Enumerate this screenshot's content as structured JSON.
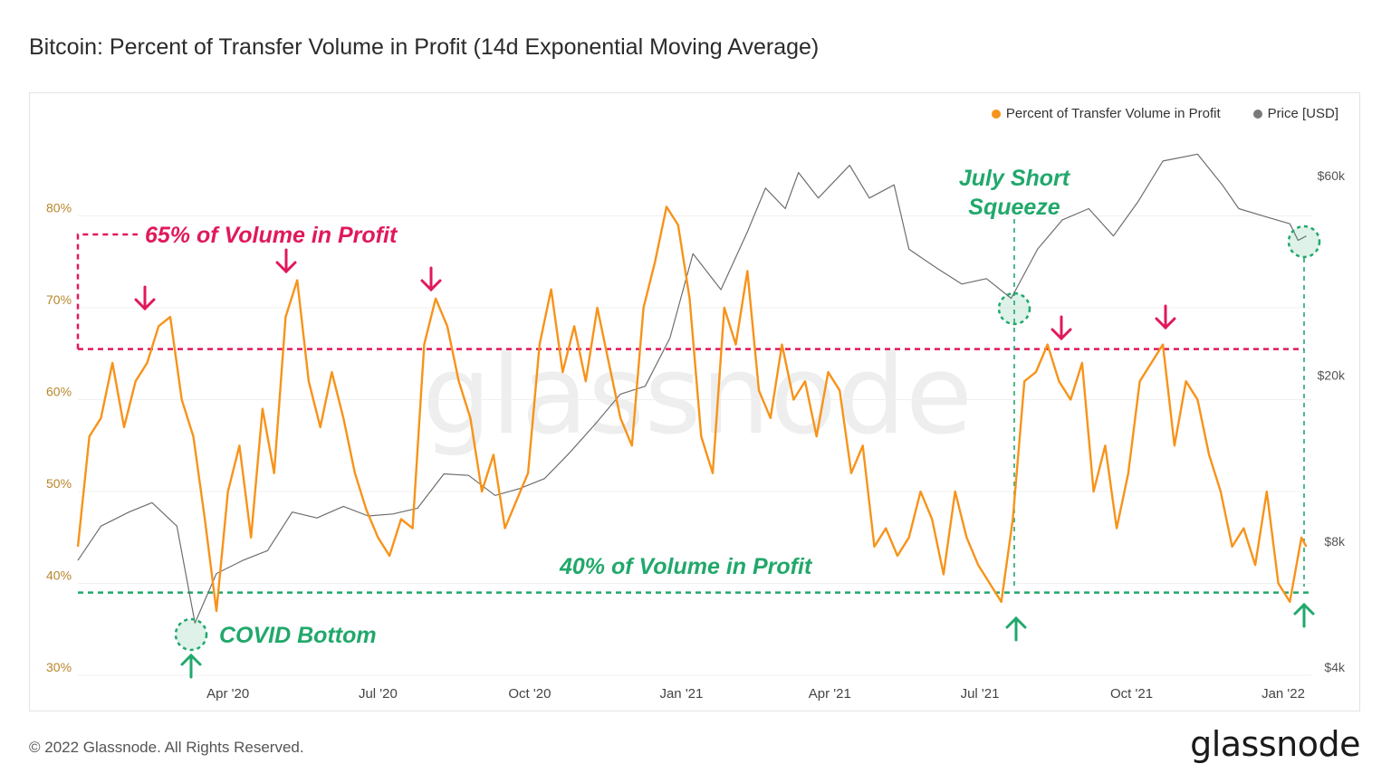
{
  "title": "Bitcoin: Percent of Transfer Volume in Profit (14d Exponential Moving Average)",
  "footer": {
    "copyright": "© 2022 Glassnode. All Rights Reserved.",
    "brand": "glassnode"
  },
  "watermark": "glassnode",
  "legend": [
    {
      "label": "Percent of Transfer Volume in Profit",
      "color": "#f7931a"
    },
    {
      "label": "Price [USD]",
      "color": "#6e6e6e"
    }
  ],
  "chart_data": {
    "type": "line",
    "x_ticks": [
      "Apr '20",
      "Jul '20",
      "Oct '20",
      "Jan '21",
      "Apr '21",
      "Jul '21",
      "Oct '21",
      "Jan '22"
    ],
    "y_left_ticks": [
      "30%",
      "40%",
      "50%",
      "60%",
      "70%",
      "80%"
    ],
    "y_left_range": [
      30,
      80
    ],
    "y_right_ticks": [
      "$4k",
      "$8k",
      "$20k",
      "$60k"
    ],
    "y_right_scale": "log",
    "annotations": {
      "top_line_label": "65% of Volume in Profit",
      "bottom_line_label": "40% of Volume in Profit",
      "covid": "COVID Bottom",
      "july_1": "July Short",
      "july_2": "Squeeze"
    },
    "series": [
      {
        "name": "Percent of Transfer Volume in Profit",
        "color": "#f7931a",
        "dates": [
          "2020-01-01",
          "2020-01-08",
          "2020-01-15",
          "2020-01-22",
          "2020-01-29",
          "2020-02-05",
          "2020-02-12",
          "2020-02-19",
          "2020-02-26",
          "2020-03-04",
          "2020-03-11",
          "2020-03-18",
          "2020-03-25",
          "2020-04-01",
          "2020-04-08",
          "2020-04-15",
          "2020-04-22",
          "2020-04-29",
          "2020-05-06",
          "2020-05-13",
          "2020-05-20",
          "2020-05-27",
          "2020-06-03",
          "2020-06-10",
          "2020-06-17",
          "2020-06-24",
          "2020-07-01",
          "2020-07-08",
          "2020-07-15",
          "2020-07-22",
          "2020-07-29",
          "2020-08-05",
          "2020-08-12",
          "2020-08-19",
          "2020-08-26",
          "2020-09-02",
          "2020-09-09",
          "2020-09-16",
          "2020-09-23",
          "2020-09-30",
          "2020-10-07",
          "2020-10-14",
          "2020-10-21",
          "2020-10-28",
          "2020-11-04",
          "2020-11-11",
          "2020-11-18",
          "2020-11-25",
          "2020-12-02",
          "2020-12-09",
          "2020-12-16",
          "2020-12-23",
          "2020-12-30",
          "2021-01-06",
          "2021-01-13",
          "2021-01-20",
          "2021-01-27",
          "2021-02-03",
          "2021-02-10",
          "2021-02-17",
          "2021-02-24",
          "2021-03-03",
          "2021-03-10",
          "2021-03-17",
          "2021-03-24",
          "2021-03-31",
          "2021-04-07",
          "2021-04-14",
          "2021-04-21",
          "2021-04-28",
          "2021-05-05",
          "2021-05-12",
          "2021-05-19",
          "2021-05-26",
          "2021-06-02",
          "2021-06-09",
          "2021-06-16",
          "2021-06-23",
          "2021-06-30",
          "2021-07-07",
          "2021-07-14",
          "2021-07-21",
          "2021-07-28",
          "2021-08-04",
          "2021-08-11",
          "2021-08-18",
          "2021-08-25",
          "2021-09-01",
          "2021-09-08",
          "2021-09-15",
          "2021-09-22",
          "2021-09-29",
          "2021-10-06",
          "2021-10-13",
          "2021-10-20",
          "2021-10-27",
          "2021-11-03",
          "2021-11-10",
          "2021-11-17",
          "2021-11-24",
          "2021-12-01",
          "2021-12-08",
          "2021-12-15",
          "2021-12-22",
          "2021-12-29",
          "2022-01-05",
          "2022-01-12",
          "2022-01-15"
        ],
        "values": [
          44,
          56,
          58,
          64,
          57,
          62,
          64,
          68,
          69,
          60,
          56,
          47,
          37,
          50,
          55,
          45,
          59,
          52,
          69,
          73,
          62,
          57,
          63,
          58,
          52,
          48,
          45,
          43,
          47,
          46,
          66,
          71,
          68,
          62,
          58,
          50,
          54,
          46,
          49,
          52,
          66,
          72,
          63,
          68,
          62,
          70,
          64,
          58,
          55,
          70,
          75,
          81,
          79,
          71,
          56,
          52,
          70,
          66,
          74,
          61,
          58,
          66,
          60,
          62,
          56,
          63,
          61,
          52,
          55,
          44,
          46,
          43,
          45,
          50,
          47,
          41,
          50,
          45,
          42,
          40,
          38,
          47,
          62,
          63,
          66,
          62,
          60,
          64,
          50,
          55,
          46,
          52,
          62,
          64,
          66,
          55,
          62,
          60,
          54,
          50,
          44,
          46,
          42,
          50,
          40,
          38,
          45,
          44
        ]
      },
      {
        "name": "Price [USD]",
        "color": "#6e6e6e",
        "dates": [
          "2020-01-01",
          "2020-01-15",
          "2020-02-01",
          "2020-02-15",
          "2020-03-01",
          "2020-03-12",
          "2020-03-25",
          "2020-04-10",
          "2020-04-25",
          "2020-05-10",
          "2020-05-25",
          "2020-06-10",
          "2020-06-25",
          "2020-07-10",
          "2020-07-25",
          "2020-08-10",
          "2020-08-25",
          "2020-09-10",
          "2020-09-25",
          "2020-10-10",
          "2020-10-25",
          "2020-11-10",
          "2020-11-25",
          "2020-12-10",
          "2020-12-25",
          "2021-01-08",
          "2021-01-25",
          "2021-02-10",
          "2021-02-21",
          "2021-03-05",
          "2021-03-13",
          "2021-03-25",
          "2021-04-13",
          "2021-04-25",
          "2021-05-10",
          "2021-05-19",
          "2021-06-05",
          "2021-06-20",
          "2021-07-05",
          "2021-07-20",
          "2021-08-05",
          "2021-08-20",
          "2021-09-05",
          "2021-09-20",
          "2021-10-05",
          "2021-10-20",
          "2021-11-10",
          "2021-11-25",
          "2021-12-05",
          "2021-12-20",
          "2022-01-05",
          "2022-01-10",
          "2022-01-15"
        ],
        "values": [
          7200,
          8700,
          9400,
          9900,
          8700,
          5100,
          6700,
          7200,
          7600,
          9400,
          9100,
          9700,
          9200,
          9300,
          9600,
          11600,
          11500,
          10300,
          10700,
          11300,
          13000,
          15300,
          18000,
          18800,
          24500,
          39000,
          32000,
          44000,
          56000,
          50000,
          61000,
          53000,
          63500,
          53000,
          57000,
          40000,
          36000,
          33000,
          34000,
          30500,
          40000,
          47000,
          50000,
          43000,
          52000,
          65000,
          67500,
          57000,
          50000,
          48000,
          46000,
          42000,
          43000
        ]
      }
    ]
  }
}
